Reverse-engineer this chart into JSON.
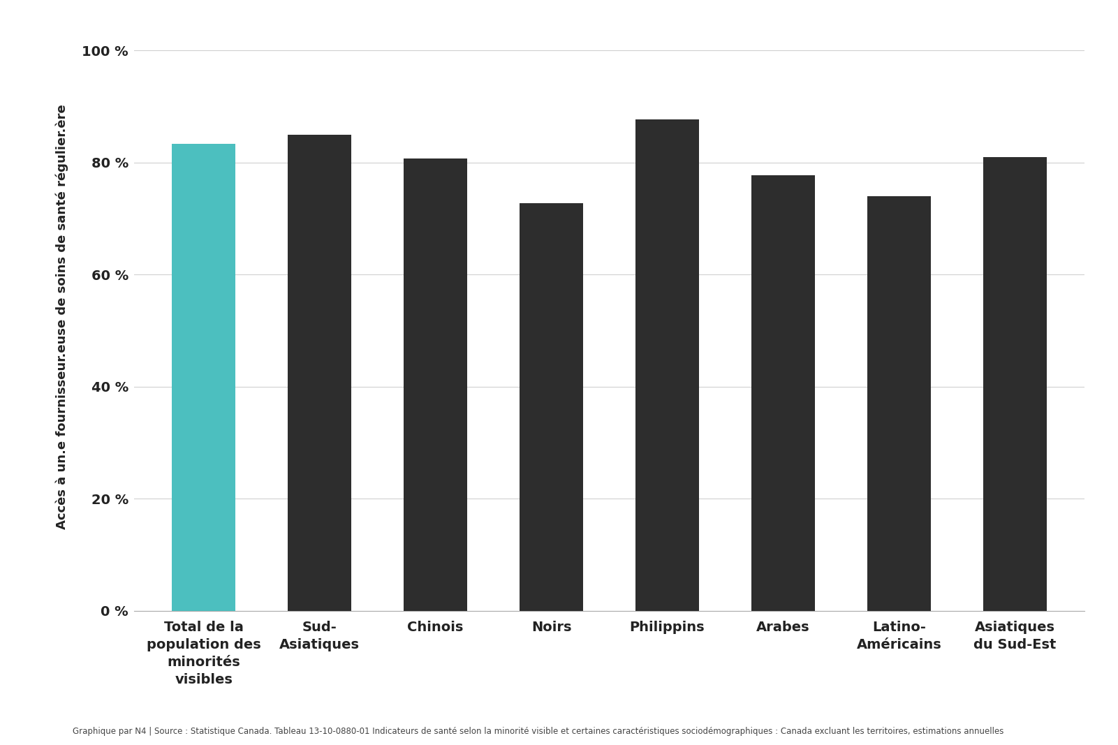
{
  "categories": [
    "Total de la\npopulation des\nminorités\nvisibles",
    "Sud-\nAsiatiques",
    "Chinois",
    "Noirs",
    "Philippins",
    "Arabes",
    "Latino-\nAméricains",
    "Asiatiques\ndu Sud-Est"
  ],
  "values": [
    83.3,
    85.0,
    80.7,
    72.7,
    87.7,
    77.7,
    74.0,
    81.0
  ],
  "bar_colors": [
    "#4CBFBF",
    "#2d2d2d",
    "#2d2d2d",
    "#2d2d2d",
    "#2d2d2d",
    "#2d2d2d",
    "#2d2d2d",
    "#2d2d2d"
  ],
  "ylabel": "Accès à un.e fournisseur.euse de soins de santé régulier.ère",
  "ylim": [
    0,
    105
  ],
  "yticks": [
    0,
    20,
    40,
    60,
    80,
    100
  ],
  "ytick_labels": [
    "0 %",
    "20 %",
    "40 %",
    "60 %",
    "80 %",
    "100 %"
  ],
  "background_color": "#ffffff",
  "grid_color": "#d0d0d0",
  "footnote": "Graphique par N4 | Source : Statistique Canada. Tableau 13-10-0880-01 Indicateurs de santé selon la minorité visible et certaines caractéristiques sociodémographiques : Canada excluant les territoires, estimations annuelles",
  "bar_width": 0.55,
  "tick_fontsize": 14,
  "ylabel_fontsize": 13,
  "footnote_fontsize": 8.5
}
